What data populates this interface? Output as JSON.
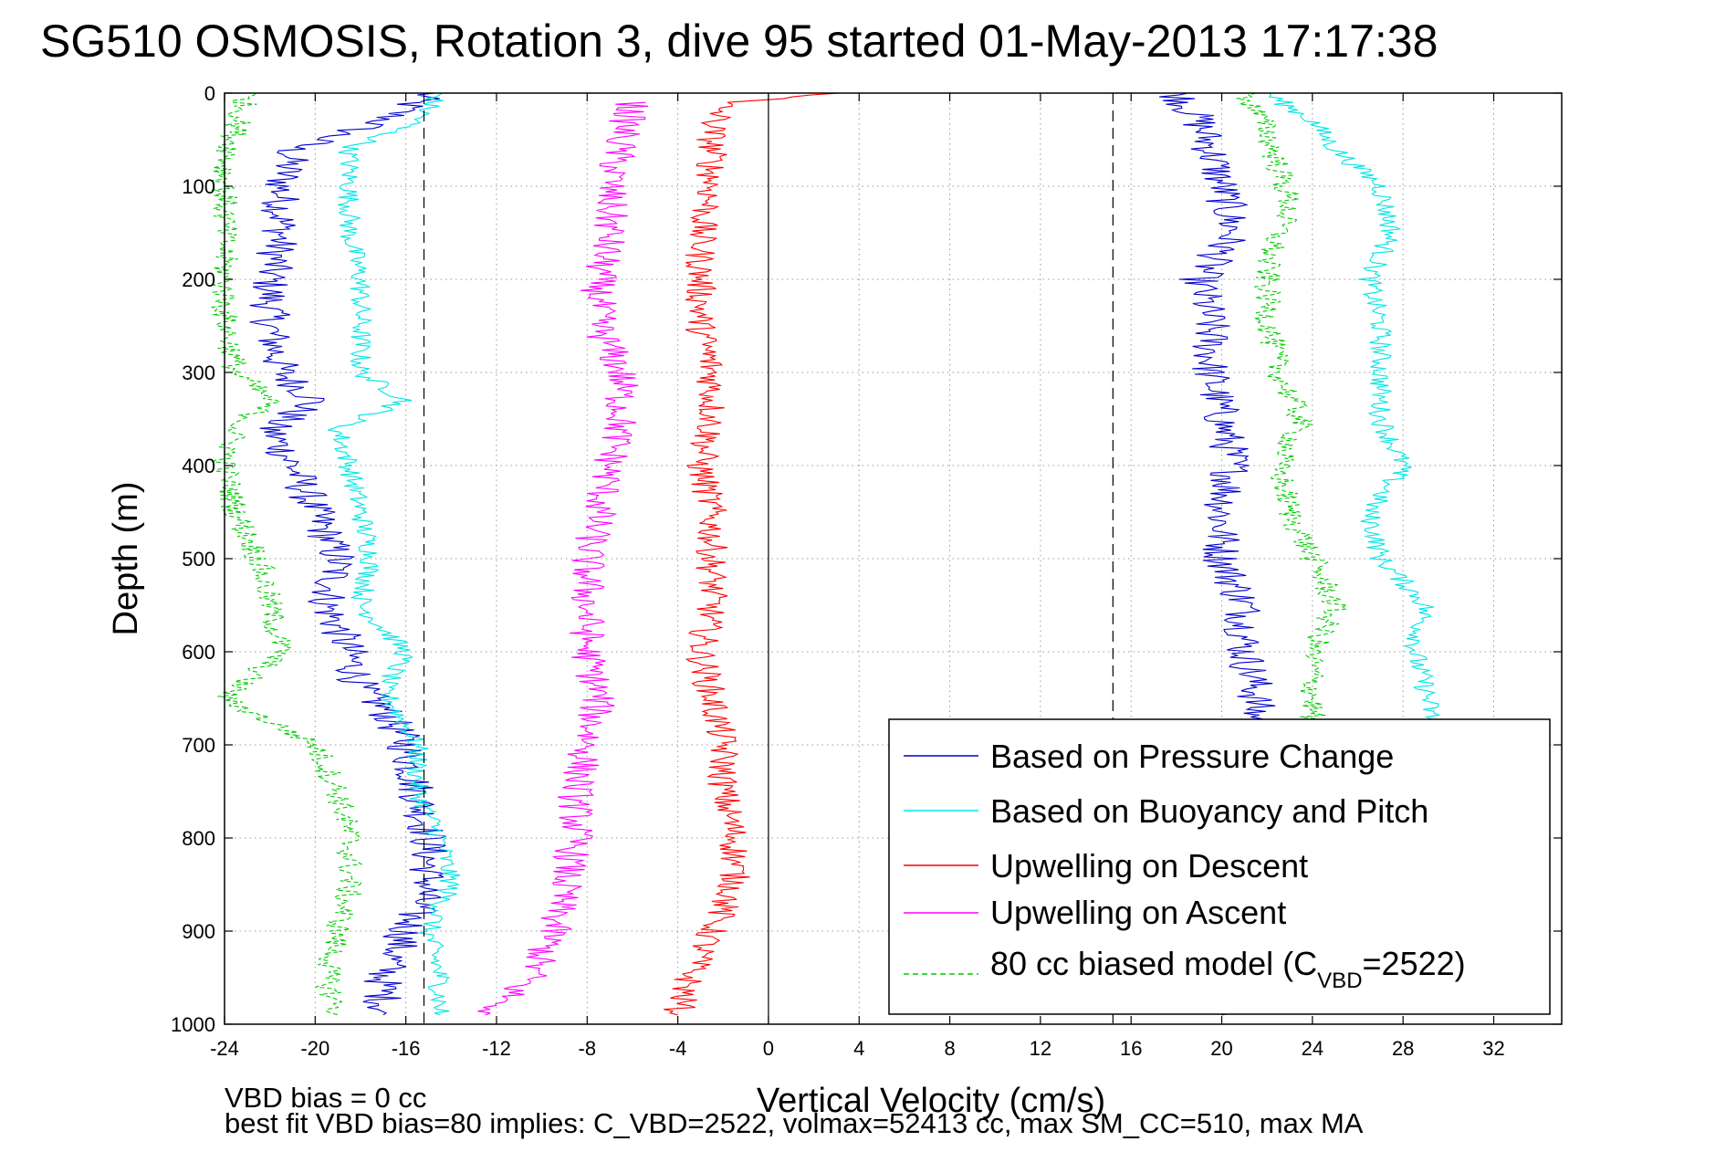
{
  "chart_data": {
    "type": "line",
    "title": "SG510 OSMOSIS, Rotation 3, dive 95 started 01-May-2013 17:17:38",
    "xlabel": "Vertical Velocity (cm/s)",
    "ylabel": "Depth (m)",
    "xlim": [
      -24,
      35
    ],
    "ylim": [
      0,
      1000
    ],
    "y_reversed": true,
    "grid": true,
    "legend_position": "bottom-right",
    "x_ticks": [
      "-24",
      "-20",
      "-16",
      "-12",
      "-8",
      "-4",
      "0",
      "4",
      "8",
      "12",
      "16",
      "20",
      "24",
      "28",
      "32"
    ],
    "y_ticks": [
      "0",
      "100",
      "200",
      "300",
      "400",
      "500",
      "600",
      "700",
      "800",
      "900",
      "1000"
    ],
    "reference_lines": {
      "dashed_x": [
        -15.2,
        15.2
      ],
      "solid_x": [
        0
      ]
    },
    "legend": {
      "entries": [
        {
          "label": "Based on Pressure Change",
          "color": "#0000cc",
          "style": "solid"
        },
        {
          "label": "Based on Buoyancy and Pitch",
          "color": "#00e5e5",
          "style": "solid"
        },
        {
          "label": "Upwelling on Descent",
          "color": "#ff0000",
          "style": "solid"
        },
        {
          "label": "Upwelling on Ascent",
          "color": "#ff00ff",
          "style": "solid"
        },
        {
          "label_pre": "80 cc biased model (C",
          "label_sub": "VBD",
          "label_post": "=2522)",
          "color": "#00cc00",
          "style": "dashed"
        }
      ]
    },
    "series": [
      {
        "name": "Based on Pressure Change",
        "color": "#0000cc",
        "branches": [
          {
            "depth": [
              0,
              30,
              60,
              100,
              150,
              200,
              250,
              300,
              330,
              360,
              400,
              450,
              500,
              550,
              600,
              640,
              660,
              700,
              750,
              800,
              850,
              900,
              950,
              990
            ],
            "v": [
              -15,
              -17,
              -21,
              -21.5,
              -21.5,
              -22,
              -22,
              -21.5,
              -20,
              -22,
              -21,
              -20,
              -19,
              -19.5,
              -18.5,
              -18,
              -17,
              -16,
              -15.5,
              -15,
              -15,
              -16,
              -17,
              -17
            ]
          },
          {
            "depth": [
              0,
              30,
              60,
              100,
              150,
              200,
              250,
              300,
              350,
              400,
              450,
              500,
              550,
              600,
              640,
              700,
              750,
              800,
              850,
              900,
              950,
              990
            ],
            "v": [
              18,
              19,
              19.5,
              20,
              20.5,
              19,
              19.5,
              19.5,
              20,
              20.5,
              20,
              20,
              21,
              21,
              21.5,
              21.5,
              21,
              21,
              21,
              21,
              21,
              20
            ]
          }
        ],
        "noise": 0.9
      },
      {
        "name": "Based on Buoyancy and Pitch",
        "color": "#00e5e5",
        "branches": [
          {
            "depth": [
              0,
              30,
              60,
              100,
              150,
              200,
              250,
              300,
              330,
              360,
              400,
              450,
              500,
              550,
              600,
              640,
              660,
              700,
              750,
              800,
              850,
              900,
              950,
              990
            ],
            "v": [
              -14.5,
              -15.5,
              -18.5,
              -18.5,
              -18.5,
              -18,
              -18,
              -18,
              -16,
              -19,
              -18.5,
              -18,
              -17.5,
              -18,
              -16,
              -17,
              -16.5,
              -15.5,
              -15.5,
              -14.5,
              -14,
              -15,
              -14.5,
              -14.5
            ]
          },
          {
            "depth": [
              0,
              30,
              60,
              100,
              150,
              200,
              250,
              300,
              350,
              400,
              450,
              500,
              550,
              600,
              640,
              700
            ],
            "v": [
              22,
              24,
              25,
              27,
              27.5,
              26.5,
              27,
              27,
              27,
              28,
              26.5,
              27,
              29,
              28.5,
              29,
              29.5
            ]
          }
        ],
        "noise": 0.5
      },
      {
        "name": "Upwelling on Descent",
        "color": "#ff0000",
        "branches": [
          {
            "depth": [
              0,
              10,
              40,
              100,
              150,
              200,
              250,
              300,
              350,
              400,
              450,
              500,
              550,
              600,
              650,
              700,
              750,
              800,
              850,
              900,
              950,
              990
            ],
            "v": [
              3.5,
              -2,
              -2.5,
              -2.5,
              -3,
              -3,
              -3,
              -2.5,
              -2.5,
              -3,
              -2.5,
              -2.5,
              -2.5,
              -3,
              -2.5,
              -2,
              -2,
              -1.5,
              -1.5,
              -2.5,
              -3.5,
              -4
            ]
          }
        ],
        "noise": 0.7
      },
      {
        "name": "Upwelling on Ascent",
        "color": "#ff00ff",
        "branches": [
          {
            "depth": [
              10,
              50,
              100,
              150,
              200,
              250,
              300,
              350,
              400,
              450,
              500,
              550,
              600,
              650,
              700,
              750,
              800,
              850,
              900,
              950,
              990
            ],
            "v": [
              -6,
              -6.5,
              -7,
              -7,
              -7.5,
              -7.5,
              -6.5,
              -6.5,
              -7,
              -7.5,
              -8,
              -8,
              -8,
              -7.5,
              -8,
              -8.5,
              -8.5,
              -9,
              -9.5,
              -10.5,
              -12.5
            ]
          }
        ],
        "noise": 0.8
      },
      {
        "name": "80 cc biased model (CVBD=2522)",
        "color": "#00cc00",
        "dashed": true,
        "branches": [
          {
            "depth": [
              0,
              40,
              80,
              120,
              180,
              240,
              300,
              330,
              360,
              400,
              450,
              500,
              550,
              600,
              650,
              700,
              750,
              800,
              850,
              900,
              950,
              990
            ],
            "v": [
              -23,
              -23.5,
              -24,
              -24,
              -24,
              -24,
              -23.5,
              -22,
              -23.5,
              -24,
              -23.5,
              -22.5,
              -22,
              -21.5,
              -24,
              -20,
              -19,
              -18.5,
              -18.5,
              -19,
              -19.5,
              -19
            ]
          },
          {
            "depth": [
              0,
              40,
              80,
              120,
              180,
              240,
              300,
              350,
              400,
              450,
              500,
              550,
              600,
              650,
              700,
              750
            ],
            "v": [
              21,
              22,
              22.5,
              23,
              22,
              22,
              22.5,
              23.5,
              22.5,
              23,
              24,
              25,
              24,
              24,
              24,
              24
            ]
          }
        ],
        "noise": 0.6
      }
    ]
  },
  "footer": {
    "line1": "VBD bias = 0 cc",
    "line2": "best fit VBD bias=80 implies: C_VBD=2522, volmax=52413 cc, max SM_CC=510, max MA"
  }
}
